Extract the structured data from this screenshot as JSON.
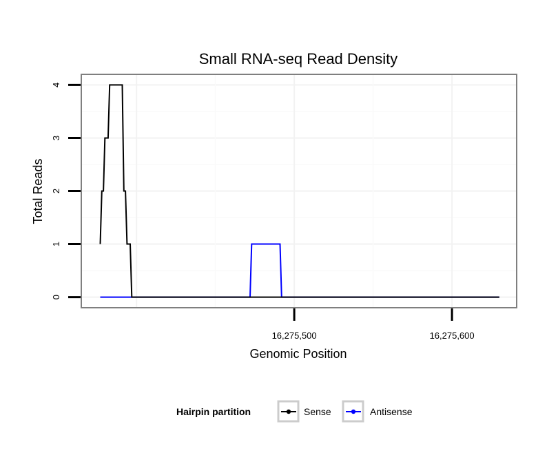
{
  "chart_data": {
    "type": "line",
    "title": "Small RNA-seq Read Density",
    "xlabel": "Genomic Position",
    "ylabel": "Total Reads",
    "xlim": [
      16275365,
      16275641
    ],
    "ylim": [
      -0.2,
      4.2
    ],
    "x_ticks": [
      {
        "value": 16275500,
        "label": "16,275,500"
      },
      {
        "value": 16275600,
        "label": "16,275,600"
      }
    ],
    "y_ticks": [
      {
        "value": 0,
        "label": "0"
      },
      {
        "value": 1,
        "label": "1"
      },
      {
        "value": 2,
        "label": "2"
      },
      {
        "value": 3,
        "label": "3"
      },
      {
        "value": 4,
        "label": "4"
      }
    ],
    "grid": true,
    "legend_position": "bottom",
    "legend_title": "Hairpin partition",
    "series": [
      {
        "name": "Sense",
        "color": "#000000",
        "x": [
          16275377,
          16275378,
          16275379,
          16275380,
          16275381,
          16275382,
          16275383,
          16275384,
          16275390,
          16275391,
          16275392,
          16275393,
          16275394,
          16275395,
          16275396,
          16275397,
          16275630
        ],
        "y": [
          1,
          2,
          2,
          3,
          3,
          3,
          4,
          4,
          4,
          4,
          2,
          2,
          1,
          1,
          1,
          0,
          0
        ]
      },
      {
        "name": "Antisense",
        "color": "#0000ff",
        "x": [
          16275377,
          16275471,
          16275472,
          16275473,
          16275491,
          16275492,
          16275493,
          16275630
        ],
        "y": [
          0,
          0,
          0,
          1,
          1,
          0,
          0,
          0
        ]
      }
    ]
  }
}
